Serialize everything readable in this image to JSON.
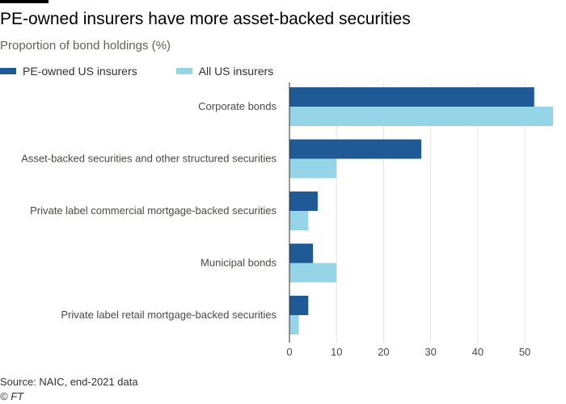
{
  "chart_data": {
    "type": "bar",
    "orientation": "horizontal",
    "title": "PE-owned insurers have more asset-backed securities",
    "subtitle": "Proportion of bond holdings (%)",
    "categories": [
      "Corporate bonds",
      "Asset-backed securities and other structured securities",
      "Private label commercial mortgage-backed securities",
      "Municipal bonds",
      "Private label retail mortgage-backed securities"
    ],
    "series": [
      {
        "name": "PE-owned US insurers",
        "color": "#1f5a96",
        "values": [
          52,
          28,
          6,
          5,
          4
        ]
      },
      {
        "name": "All US insurers",
        "color": "#96d5e8",
        "values": [
          56,
          10,
          4,
          10,
          2
        ]
      }
    ],
    "xlim": [
      0,
      56
    ],
    "xticks": [
      0,
      10,
      20,
      30,
      40,
      50
    ],
    "grid": true,
    "legend_position": "top-left",
    "source": "Source: NAIC, end-2021 data",
    "credit": "© FT"
  }
}
